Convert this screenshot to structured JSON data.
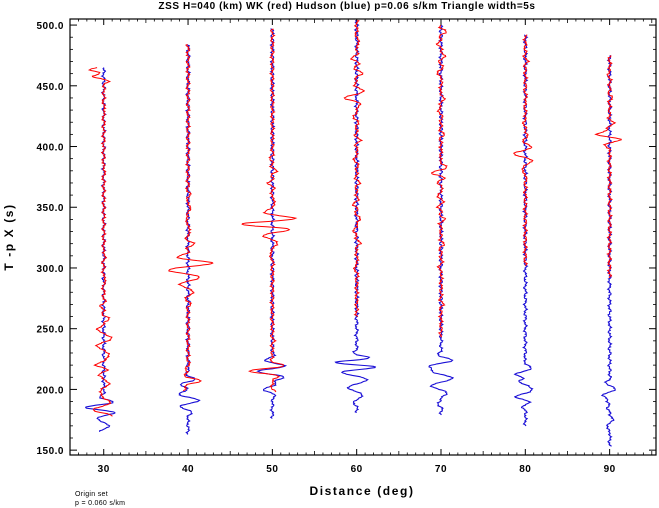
{
  "chart_data": {
    "type": "line",
    "title": "ZSS H=040 (km) WK (red) Hudson (blue) p=0.06 s/km Triangle width=5s",
    "xlabel": "Distance (deg)",
    "ylabel": "T -p X (s)",
    "xlim": [
      26,
      95.5
    ],
    "ylim": [
      146,
      505
    ],
    "xticks": [
      30,
      40,
      50,
      60,
      70,
      80,
      90
    ],
    "xtick_labels": [
      "30",
      "40",
      "50",
      "60",
      "70",
      "80",
      "90"
    ],
    "yticks": [
      150,
      200,
      250,
      300,
      350,
      400,
      450,
      500
    ],
    "ytick_labels": [
      "150.0",
      "200.0",
      "250.0",
      "300.0",
      "350.0",
      "400.0",
      "450.0",
      "500.0"
    ],
    "grid": false,
    "legend": "none",
    "series_colors": {
      "wk": "#ff0000",
      "hudson": "#1a0fd6"
    },
    "traces": [
      {
        "distance": 30,
        "t_start": 165,
        "t_end": 465,
        "wk_start": 465,
        "wk_end": 178,
        "blue_peaks": [
          [
            165,
            -0.3
          ],
          [
            170,
            0.6
          ],
          [
            176,
            -0.8
          ],
          [
            181,
            0.9
          ],
          [
            185,
            -2.5
          ],
          [
            190,
            0.6
          ],
          [
            194,
            -0.4
          ]
        ],
        "red_peaks": [
          [
            178,
            1.2
          ],
          [
            183,
            -1.5
          ],
          [
            190,
            0.8
          ],
          [
            197,
            -0.5
          ],
          [
            205,
            0.9
          ],
          [
            212,
            -0.7
          ],
          [
            220,
            -1.2
          ],
          [
            228,
            1.0
          ],
          [
            236,
            -0.9
          ],
          [
            242,
            1.3
          ],
          [
            250,
            -1.0
          ],
          [
            258,
            0.8
          ],
          [
            268,
            -0.5
          ],
          [
            290,
            0.4
          ],
          [
            310,
            0.3
          ],
          [
            380,
            0.2
          ],
          [
            430,
            0.2
          ],
          [
            458,
            -2.4
          ],
          [
            463,
            -2.9
          ]
        ]
      },
      {
        "distance": 40,
        "t_start": 163,
        "t_end": 484,
        "wk_start": 484,
        "wk_end": 199,
        "blue_peaks": [
          [
            180,
            0.3
          ],
          [
            186,
            -0.8
          ],
          [
            191,
            1.3
          ],
          [
            196,
            -1.5
          ],
          [
            200,
            -0.8
          ],
          [
            204,
            -1.3
          ],
          [
            208,
            0.7
          ]
        ],
        "red_peaks": [
          [
            199,
            -0.6
          ],
          [
            207,
            2.0
          ],
          [
            216,
            -0.4
          ],
          [
            270,
            0.3
          ],
          [
            280,
            0.8
          ],
          [
            286,
            -1.0
          ],
          [
            292,
            1.1
          ],
          [
            298,
            -2.6
          ],
          [
            304,
            3.4
          ],
          [
            310,
            -0.8
          ],
          [
            320,
            0.9
          ],
          [
            330,
            0.4
          ],
          [
            340,
            -0.4
          ],
          [
            350,
            0.5
          ],
          [
            360,
            0.3
          ]
        ]
      },
      {
        "distance": 50,
        "t_start": 176,
        "t_end": 497,
        "wk_start": 497,
        "wk_end": 198,
        "blue_peaks": [
          [
            190,
            0.1
          ],
          [
            200,
            -1.4
          ],
          [
            205,
            0.8
          ],
          [
            210,
            1.8
          ],
          [
            215,
            -1.6
          ],
          [
            219,
            1.5
          ],
          [
            224,
            -0.7
          ]
        ],
        "red_peaks": [
          [
            198,
            0.3
          ],
          [
            215,
            -3.5
          ],
          [
            220,
            0.8
          ],
          [
            240,
            0.2
          ],
          [
            310,
            -0.5
          ],
          [
            320,
            0.8
          ],
          [
            326,
            -1.0
          ],
          [
            332,
            1.4
          ],
          [
            336,
            -4.0
          ],
          [
            341,
            2.6
          ],
          [
            346,
            -0.7
          ],
          [
            355,
            0.5
          ],
          [
            370,
            -0.6
          ],
          [
            380,
            0.6
          ],
          [
            390,
            -0.3
          ]
        ]
      },
      {
        "distance": 60,
        "t_start": 181,
        "t_end": 504,
        "wk_start": 504,
        "wk_end": 260,
        "blue_peaks": [
          [
            188,
            -0.3
          ],
          [
            195,
            0.8
          ],
          [
            201,
            -1.2
          ],
          [
            208,
            1.3
          ],
          [
            214,
            -1.8
          ],
          [
            219,
            2.2
          ],
          [
            222,
            -3.3
          ],
          [
            225,
            1.6
          ]
        ],
        "red_peaks": [
          [
            300,
            -0.5
          ],
          [
            320,
            0.6
          ],
          [
            330,
            -0.6
          ],
          [
            340,
            0.7
          ],
          [
            352,
            -0.5
          ],
          [
            370,
            0.4
          ],
          [
            390,
            -0.5
          ],
          [
            405,
            0.5
          ],
          [
            425,
            -0.6
          ],
          [
            440,
            -2.1
          ],
          [
            446,
            0.7
          ],
          [
            460,
            0.9
          ],
          [
            473,
            -0.8
          ],
          [
            486,
            0.5
          ]
        ]
      },
      {
        "distance": 70,
        "t_start": 179,
        "t_end": 500,
        "wk_start": 500,
        "wk_end": 243,
        "blue_peaks": [
          [
            188,
            -0.4
          ],
          [
            196,
            0.8
          ],
          [
            203,
            -1.3
          ],
          [
            209,
            1.5
          ],
          [
            215,
            -1.7
          ],
          [
            219,
            -2.2
          ],
          [
            224,
            1.3
          ]
        ],
        "red_peaks": [
          [
            270,
            0.3
          ],
          [
            300,
            -0.4
          ],
          [
            320,
            0.4
          ],
          [
            340,
            0.5
          ],
          [
            350,
            -0.4
          ],
          [
            360,
            -0.6
          ],
          [
            370,
            -0.6
          ],
          [
            378,
            -1.3
          ],
          [
            384,
            0.6
          ],
          [
            410,
            0.4
          ],
          [
            430,
            -0.5
          ],
          [
            440,
            0.6
          ],
          [
            460,
            -0.7
          ],
          [
            475,
            0.7
          ],
          [
            485,
            -0.6
          ],
          [
            495,
            0.8
          ]
        ]
      },
      {
        "distance": 80,
        "t_start": 170,
        "t_end": 492,
        "wk_start": 492,
        "wk_end": 302,
        "blue_peaks": [
          [
            185,
            -0.4
          ],
          [
            194,
            -1.4
          ],
          [
            200,
            0.9
          ],
          [
            207,
            -1.3
          ],
          [
            212,
            -1.9
          ],
          [
            219,
            0.6
          ]
        ],
        "red_peaks": [
          [
            380,
            -0.6
          ],
          [
            388,
            0.7
          ],
          [
            394,
            -1.9
          ],
          [
            400,
            0.5
          ],
          [
            410,
            0.4
          ],
          [
            420,
            -0.3
          ],
          [
            440,
            0.2
          ],
          [
            470,
            0.3
          ]
        ]
      },
      {
        "distance": 90,
        "t_start": 153,
        "t_end": 475,
        "wk_start": 475,
        "wk_end": 292,
        "blue_peaks": [
          [
            168,
            -0.4
          ],
          [
            176,
            0.6
          ],
          [
            185,
            -0.5
          ],
          [
            190,
            -0.9
          ],
          [
            195,
            -1.4
          ],
          [
            200,
            0.5
          ],
          [
            206,
            -0.4
          ]
        ],
        "red_peaks": [
          [
            400,
            -0.5
          ],
          [
            406,
            1.0
          ],
          [
            410,
            -2.0
          ],
          [
            414,
            -0.9
          ],
          [
            420,
            0.4
          ],
          [
            440,
            0.3
          ],
          [
            460,
            -0.3
          ]
        ]
      }
    ]
  },
  "note": {
    "line1": "Origin set",
    "line2": "p = 0.060 s/km"
  }
}
